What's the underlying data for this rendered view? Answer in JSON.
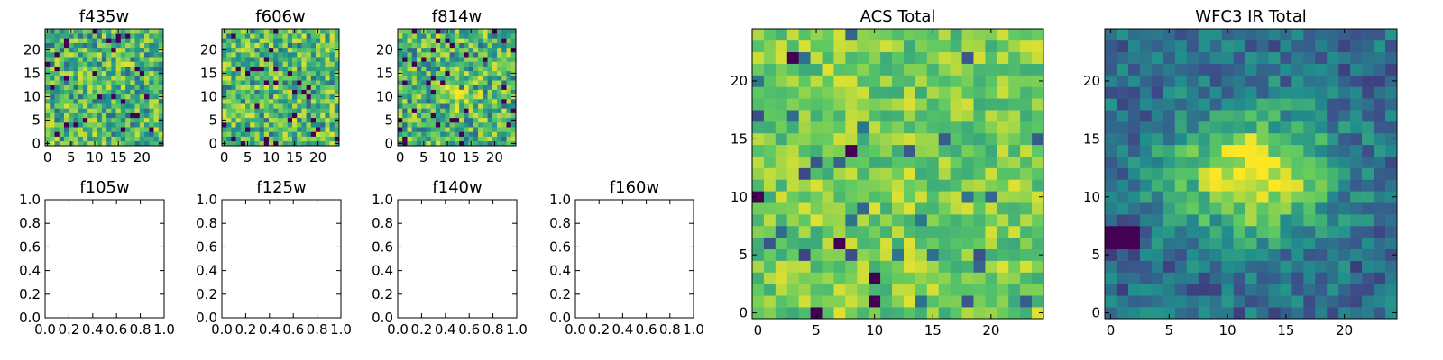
{
  "figure": {
    "colormap": "viridis",
    "colormap_stops": [
      "#440154",
      "#3b528b",
      "#21908d",
      "#5dc963",
      "#fde725"
    ]
  },
  "chart_data": [
    {
      "type": "heatmap",
      "title": "f435w",
      "xlim": [
        -0.5,
        24.5
      ],
      "ylim": [
        -0.5,
        24.5
      ],
      "xticks": [
        0,
        5,
        10,
        15,
        20
      ],
      "xtick_labels": [
        "0",
        "5",
        "10",
        "15",
        "20"
      ],
      "yticks": [
        0,
        5,
        10,
        15,
        20
      ],
      "ytick_labels": [
        "0",
        "5",
        "10",
        "15",
        "20"
      ],
      "grid_size": [
        25,
        25
      ],
      "value_range": [
        0,
        1
      ],
      "noise_level": "high",
      "description_of_values": "pixel intensity image, mostly uniform noise"
    },
    {
      "type": "heatmap",
      "title": "f606w",
      "xlim": [
        -0.5,
        24.5
      ],
      "ylim": [
        -0.5,
        24.5
      ],
      "xticks": [
        0,
        5,
        10,
        15,
        20
      ],
      "xtick_labels": [
        "0",
        "5",
        "10",
        "15",
        "20"
      ],
      "yticks": [
        0,
        5,
        10,
        15,
        20
      ],
      "ytick_labels": [
        "0",
        "5",
        "10",
        "15",
        "20"
      ],
      "grid_size": [
        25,
        25
      ],
      "value_range": [
        0,
        1
      ]
    },
    {
      "type": "heatmap",
      "title": "f814w",
      "xlim": [
        -0.5,
        24.5
      ],
      "ylim": [
        -0.5,
        24.5
      ],
      "xticks": [
        0,
        5,
        10,
        15,
        20
      ],
      "xtick_labels": [
        "0",
        "5",
        "10",
        "15",
        "20"
      ],
      "yticks": [
        0,
        5,
        10,
        15,
        20
      ],
      "ytick_labels": [
        "0",
        "5",
        "10",
        "15",
        "20"
      ],
      "grid_size": [
        25,
        25
      ],
      "value_range": [
        0,
        1
      ],
      "source_center": [
        12,
        11
      ]
    },
    {
      "type": "scatter",
      "title": "f105w",
      "xlim": [
        0,
        1
      ],
      "ylim": [
        0,
        1
      ],
      "x": [],
      "y": [],
      "xticks": [
        0.0,
        0.2,
        0.4,
        0.6,
        0.8,
        1.0
      ],
      "xtick_labels": [
        "0.0",
        "0.2",
        "0.4",
        "0.6",
        "0.8",
        "1.0"
      ],
      "yticks": [
        0.0,
        0.2,
        0.4,
        0.6,
        0.8,
        1.0
      ],
      "ytick_labels": [
        "0.0",
        "0.2",
        "0.4",
        "0.6",
        "0.8",
        "1.0"
      ]
    },
    {
      "type": "scatter",
      "title": "f125w",
      "xlim": [
        0,
        1
      ],
      "ylim": [
        0,
        1
      ],
      "x": [],
      "y": [],
      "xticks": [
        0.0,
        0.2,
        0.4,
        0.6,
        0.8,
        1.0
      ],
      "xtick_labels": [
        "0.0",
        "0.2",
        "0.4",
        "0.6",
        "0.8",
        "1.0"
      ],
      "yticks": [
        0.0,
        0.2,
        0.4,
        0.6,
        0.8,
        1.0
      ],
      "ytick_labels": [
        "0.0",
        "0.2",
        "0.4",
        "0.6",
        "0.8",
        "1.0"
      ]
    },
    {
      "type": "scatter",
      "title": "f140w",
      "xlim": [
        0,
        1
      ],
      "ylim": [
        0,
        1
      ],
      "x": [],
      "y": [],
      "xticks": [
        0.0,
        0.2,
        0.4,
        0.6,
        0.8,
        1.0
      ],
      "xtick_labels": [
        "0.0",
        "0.2",
        "0.4",
        "0.6",
        "0.8",
        "1.0"
      ],
      "yticks": [
        0.0,
        0.2,
        0.4,
        0.6,
        0.8,
        1.0
      ],
      "ytick_labels": [
        "0.0",
        "0.2",
        "0.4",
        "0.6",
        "0.8",
        "1.0"
      ]
    },
    {
      "type": "scatter",
      "title": "f160w",
      "xlim": [
        0,
        1
      ],
      "ylim": [
        0,
        1
      ],
      "x": [],
      "y": [],
      "xticks": [
        0.0,
        0.2,
        0.4,
        0.6,
        0.8,
        1.0
      ],
      "xtick_labels": [
        "0.0",
        "0.2",
        "0.4",
        "0.6",
        "0.8",
        "1.0"
      ],
      "yticks": [
        0.0,
        0.2,
        0.4,
        0.6,
        0.8,
        1.0
      ],
      "ytick_labels": [
        "0.0",
        "0.2",
        "0.4",
        "0.6",
        "0.8",
        "1.0"
      ]
    },
    {
      "type": "heatmap",
      "title": "ACS Total",
      "xlim": [
        -0.5,
        24.5
      ],
      "ylim": [
        -0.5,
        24.5
      ],
      "xticks": [
        0,
        5,
        10,
        15,
        20
      ],
      "xtick_labels": [
        "0",
        "5",
        "10",
        "15",
        "20"
      ],
      "yticks": [
        0,
        5,
        10,
        15,
        20
      ],
      "ytick_labels": [
        "0",
        "5",
        "10",
        "15",
        "20"
      ],
      "grid_size": [
        25,
        25
      ],
      "value_range": [
        0,
        1
      ]
    },
    {
      "type": "heatmap",
      "title": "WFC3 IR Total",
      "xlim": [
        -0.5,
        24.5
      ],
      "ylim": [
        -0.5,
        24.5
      ],
      "xticks": [
        0,
        5,
        10,
        15,
        20
      ],
      "xtick_labels": [
        "0",
        "5",
        "10",
        "15",
        "20"
      ],
      "yticks": [
        0,
        5,
        10,
        15,
        20
      ],
      "ytick_labels": [
        "0",
        "5",
        "10",
        "15",
        "20"
      ],
      "grid_size": [
        25,
        25
      ],
      "value_range": [
        0,
        1
      ],
      "source_center": [
        12,
        12
      ]
    }
  ]
}
